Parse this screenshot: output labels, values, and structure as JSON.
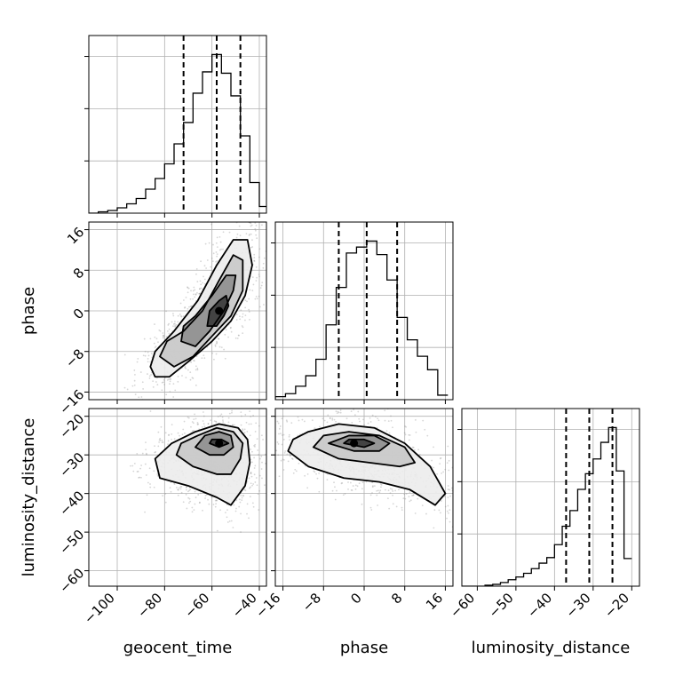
{
  "chart_data": {
    "type": "corner",
    "parameters": [
      {
        "name": "geocent_time",
        "label": "geocent_time",
        "range": [
          -112,
          -37
        ],
        "ticks": [
          -100,
          -80,
          -60,
          -40
        ]
      },
      {
        "name": "phase",
        "label": "phase",
        "range": [
          -17.5,
          17.5
        ],
        "ticks": [
          -16,
          -8,
          0,
          8,
          16
        ]
      },
      {
        "name": "luminosity_distance",
        "label": "luminosity_distance",
        "range": [
          -64,
          -18
        ],
        "ticks": [
          -60,
          -50,
          -40,
          -30,
          -20
        ]
      }
    ],
    "diagonal": [
      {
        "parameter": "geocent_time",
        "quantiles": [
          -72,
          -58,
          -48
        ],
        "bin_edges": [
          -112,
          -108,
          -104,
          -100,
          -96,
          -92,
          -88,
          -84,
          -80,
          -76,
          -72,
          -68,
          -64,
          -60,
          -56,
          -52,
          -48,
          -44,
          -40,
          -37
        ],
        "counts": [
          0,
          0.01,
          0.02,
          0.04,
          0.07,
          0.11,
          0.18,
          0.26,
          0.37,
          0.52,
          0.68,
          0.9,
          1.06,
          1.19,
          1.05,
          0.88,
          0.58,
          0.23,
          0.05
        ]
      },
      {
        "parameter": "phase",
        "quantiles": [
          -5,
          0.5,
          6.5
        ],
        "bin_edges": [
          -17.5,
          -15.5,
          -13.5,
          -11.5,
          -9.5,
          -7.5,
          -5.5,
          -3.5,
          -1.5,
          0.5,
          2.5,
          4.5,
          6.5,
          8.5,
          10.5,
          12.5,
          14.5,
          16.5
        ],
        "counts": [
          0.02,
          0.04,
          0.09,
          0.16,
          0.27,
          0.5,
          0.75,
          0.98,
          1.02,
          1.06,
          0.97,
          0.8,
          0.55,
          0.4,
          0.29,
          0.2,
          0.03
        ]
      },
      {
        "parameter": "luminosity_distance",
        "quantiles": [
          -37,
          -31,
          -25
        ],
        "bin_edges": [
          -64,
          -62,
          -60,
          -58,
          -56,
          -54,
          -52,
          -50,
          -48,
          -46,
          -44,
          -42,
          -40,
          -38,
          -36,
          -34,
          -32,
          -30,
          -28,
          -26,
          -24,
          -22,
          -20
        ],
        "counts": [
          0,
          0,
          0,
          0.01,
          0.02,
          0.04,
          0.07,
          0.1,
          0.14,
          0.19,
          0.25,
          0.31,
          0.45,
          0.65,
          0.82,
          1.05,
          1.22,
          1.38,
          1.56,
          1.72,
          1.25,
          0.3
        ]
      }
    ],
    "offdiagonal": [
      {
        "x": "geocent_time",
        "y": "phase",
        "peak": [
          -57,
          0
        ],
        "contours": [
          [
            [
              -86,
              -11
            ],
            [
              -84,
              -13
            ],
            [
              -78,
              -13
            ],
            [
              -70,
              -10
            ],
            [
              -60,
              -6
            ],
            [
              -52,
              -2
            ],
            [
              -46,
              3
            ],
            [
              -43,
              9
            ],
            [
              -45,
              14
            ],
            [
              -51,
              14
            ],
            [
              -58,
              9
            ],
            [
              -66,
              2
            ],
            [
              -76,
              -4
            ],
            [
              -84,
              -8
            ]
          ],
          [
            [
              -82,
              -9
            ],
            [
              -76,
              -11
            ],
            [
              -68,
              -9
            ],
            [
              -60,
              -5
            ],
            [
              -52,
              -1
            ],
            [
              -47,
              4
            ],
            [
              -47,
              10
            ],
            [
              -51,
              11
            ],
            [
              -57,
              6
            ],
            [
              -64,
              0
            ],
            [
              -72,
              -4
            ],
            [
              -79,
              -6
            ]
          ],
          [
            [
              -73,
              -6
            ],
            [
              -67,
              -7
            ],
            [
              -61,
              -4
            ],
            [
              -55,
              0
            ],
            [
              -51,
              4
            ],
            [
              -50,
              7
            ],
            [
              -54,
              7
            ],
            [
              -60,
              3
            ],
            [
              -67,
              -1
            ],
            [
              -72,
              -3
            ]
          ],
          [
            [
              -62,
              -3
            ],
            [
              -58,
              -3
            ],
            [
              -55,
              -1
            ],
            [
              -53,
              1
            ],
            [
              -54,
              3
            ],
            [
              -57,
              2
            ],
            [
              -61,
              0
            ]
          ]
        ]
      },
      {
        "x": "geocent_time",
        "y": "luminosity_distance",
        "peak": [
          -57,
          -27
        ],
        "contours": [
          [
            [
              -84,
              -31
            ],
            [
              -82,
              -36
            ],
            [
              -70,
              -38
            ],
            [
              -58,
              -41
            ],
            [
              -52,
              -43
            ],
            [
              -46,
              -38
            ],
            [
              -44,
              -32
            ],
            [
              -45,
              -26
            ],
            [
              -49,
              -23
            ],
            [
              -57,
              -22
            ],
            [
              -67,
              -24
            ],
            [
              -77,
              -27
            ]
          ],
          [
            [
              -75,
              -30
            ],
            [
              -68,
              -33
            ],
            [
              -58,
              -35
            ],
            [
              -52,
              -35
            ],
            [
              -48,
              -31
            ],
            [
              -47,
              -27
            ],
            [
              -51,
              -24
            ],
            [
              -58,
              -23
            ],
            [
              -66,
              -25
            ],
            [
              -73,
              -27
            ]
          ],
          [
            [
              -67,
              -28
            ],
            [
              -61,
              -30
            ],
            [
              -55,
              -30
            ],
            [
              -51,
              -28
            ],
            [
              -52,
              -25
            ],
            [
              -57,
              -24
            ],
            [
              -63,
              -25
            ]
          ],
          [
            [
              -61,
              -27
            ],
            [
              -57,
              -28
            ],
            [
              -53,
              -27
            ],
            [
              -56,
              -26
            ],
            [
              -60,
              -26
            ]
          ]
        ]
      },
      {
        "x": "phase",
        "y": "luminosity_distance",
        "peak": [
          -2,
          -27
        ],
        "contours": [
          [
            [
              -15,
              -29
            ],
            [
              -11,
              -33
            ],
            [
              -4,
              -36
            ],
            [
              3,
              -37
            ],
            [
              9,
              -39
            ],
            [
              14,
              -43
            ],
            [
              16,
              -40
            ],
            [
              13,
              -33
            ],
            [
              8,
              -27
            ],
            [
              2,
              -23
            ],
            [
              -5,
              -22
            ],
            [
              -11,
              -24
            ],
            [
              -14,
              -26
            ]
          ],
          [
            [
              -10,
              -28
            ],
            [
              -5,
              -31
            ],
            [
              1,
              -32
            ],
            [
              7,
              -33
            ],
            [
              10,
              -32
            ],
            [
              8,
              -28
            ],
            [
              3,
              -25
            ],
            [
              -3,
              -24
            ],
            [
              -8,
              -25
            ]
          ],
          [
            [
              -7,
              -27
            ],
            [
              -2,
              -29
            ],
            [
              3,
              -29
            ],
            [
              5,
              -27
            ],
            [
              2,
              -25
            ],
            [
              -3,
              -25
            ]
          ],
          [
            [
              -4,
              -27
            ],
            [
              0,
              -28
            ],
            [
              2,
              -27
            ],
            [
              0,
              -26
            ],
            [
              -3,
              -26
            ]
          ]
        ]
      }
    ],
    "grid": true
  }
}
